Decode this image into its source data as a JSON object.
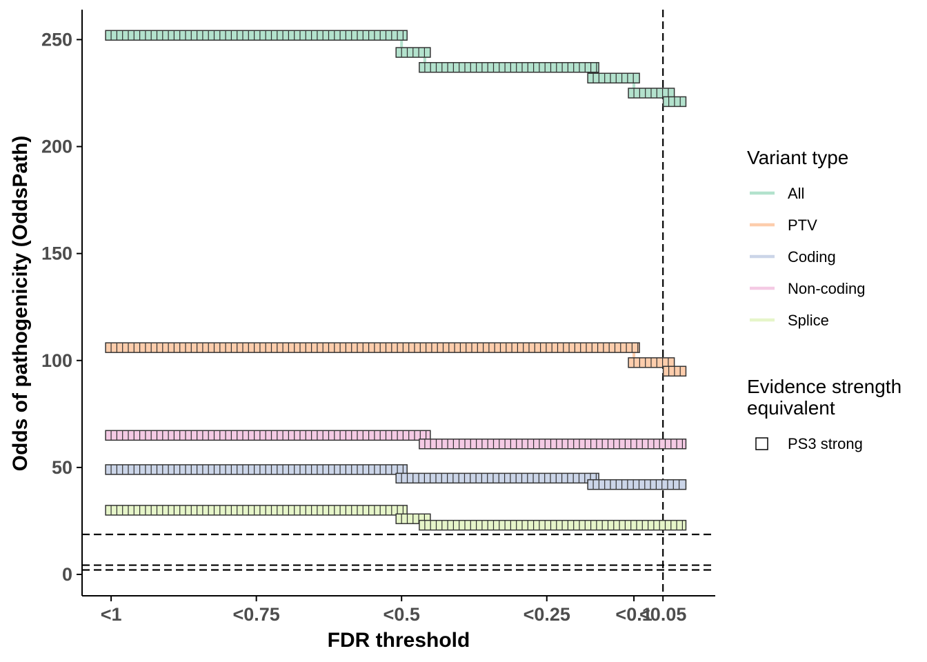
{
  "chart_data": {
    "type": "step",
    "xlabel": "FDR threshold",
    "ylabel": "Odds of pathogenicity (OddsPath)",
    "x_ticks": [
      {
        "value": 1.0,
        "label": "<1"
      },
      {
        "value": 0.75,
        "label": "<0.75"
      },
      {
        "value": 0.5,
        "label": "<0.5"
      },
      {
        "value": 0.25,
        "label": "<0.25"
      },
      {
        "value": 0.1,
        "label": "<0.1"
      },
      {
        "value": 0.05,
        "label": "<0.05"
      }
    ],
    "y_ticks": [
      0,
      50,
      100,
      150,
      200,
      250
    ],
    "xlim": [
      1.05,
      -0.04
    ],
    "ylim": [
      -10,
      264
    ],
    "vline_x": 0.05,
    "hlines_y": [
      18.7,
      4.33,
      2.08
    ],
    "legend": {
      "variant_type_title": "Variant type",
      "evidence_title_line1": "Evidence strength",
      "evidence_title_line2": "equivalent",
      "evidence_item": "PS3 strong"
    },
    "series": [
      {
        "name": "All",
        "color": "#b3e2cd",
        "segments": [
          {
            "x_start": 1.0,
            "x_end": 0.5,
            "y": 252
          },
          {
            "x_start": 0.5,
            "x_end": 0.46,
            "y": 244
          },
          {
            "x_start": 0.46,
            "x_end": 0.17,
            "y": 237
          },
          {
            "x_start": 0.17,
            "x_end": 0.1,
            "y": 232
          },
          {
            "x_start": 0.1,
            "x_end": 0.04,
            "y": 225
          },
          {
            "x_start": 0.04,
            "x_end": 0.02,
            "y": 221
          }
        ]
      },
      {
        "name": "PTV",
        "color": "#fdcdac",
        "segments": [
          {
            "x_start": 1.0,
            "x_end": 0.1,
            "y": 106
          },
          {
            "x_start": 0.1,
            "x_end": 0.04,
            "y": 99
          },
          {
            "x_start": 0.04,
            "x_end": 0.02,
            "y": 95
          }
        ]
      },
      {
        "name": "Coding",
        "color": "#cbd5e8",
        "segments": [
          {
            "x_start": 1.0,
            "x_end": 0.5,
            "y": 49
          },
          {
            "x_start": 0.5,
            "x_end": 0.17,
            "y": 45
          },
          {
            "x_start": 0.17,
            "x_end": 0.02,
            "y": 42
          }
        ]
      },
      {
        "name": "Non-coding",
        "color": "#f4cae4",
        "segments": [
          {
            "x_start": 1.0,
            "x_end": 0.46,
            "y": 65
          },
          {
            "x_start": 0.46,
            "x_end": 0.02,
            "y": 61
          }
        ]
      },
      {
        "name": "Splice",
        "color": "#e6f5c9",
        "segments": [
          {
            "x_start": 1.0,
            "x_end": 0.5,
            "y": 30
          },
          {
            "x_start": 0.5,
            "x_end": 0.46,
            "y": 26
          },
          {
            "x_start": 0.46,
            "x_end": 0.02,
            "y": 23
          }
        ]
      }
    ]
  }
}
